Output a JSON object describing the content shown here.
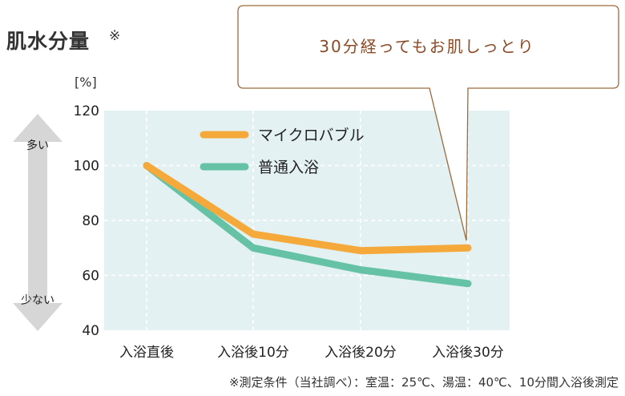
{
  "title": "肌水分量",
  "title_mark": "※",
  "unit_label": "[%]",
  "arrow": {
    "top_label": "多い",
    "bottom_label": "少ない"
  },
  "callout": {
    "text": "30分経ってもお肌しっとり"
  },
  "footnote": "※測定条件（当社調べ）：室温：25℃、湯温：40℃、10分間入浴後測定",
  "colors": {
    "plot_background": "#e3f1f2",
    "grid": "#ffffff",
    "arrow": "#d6d6d6",
    "callout_border": "#9b6a3c",
    "callout_text": "#8a4a25"
  },
  "chart_data": {
    "type": "line",
    "categories": [
      "入浴直後",
      "入浴後10分",
      "入浴後20分",
      "入浴後30分"
    ],
    "ylim": [
      40,
      120
    ],
    "yticks": [
      40,
      60,
      80,
      100,
      120
    ],
    "grid": true,
    "legend_position": "top-center",
    "series": [
      {
        "name": "マイクロバブル",
        "color": "#f6a93b",
        "values": [
          100,
          75,
          69,
          70
        ]
      },
      {
        "name": "普通入浴",
        "color": "#66c2a5",
        "values": [
          100,
          70,
          62,
          57
        ]
      }
    ]
  }
}
